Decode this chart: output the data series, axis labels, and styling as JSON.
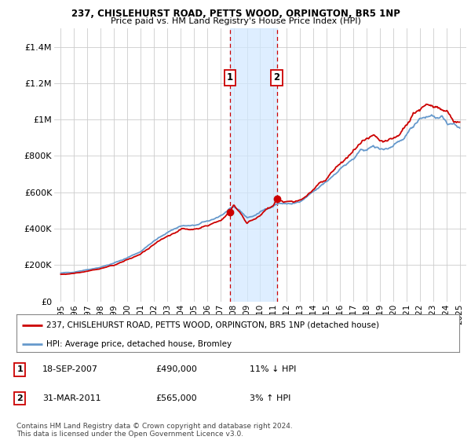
{
  "title1": "237, CHISLEHURST ROAD, PETTS WOOD, ORPINGTON, BR5 1NP",
  "title2": "Price paid vs. HM Land Registry's House Price Index (HPI)",
  "legend_red": "237, CHISLEHURST ROAD, PETTS WOOD, ORPINGTON, BR5 1NP (detached house)",
  "legend_blue": "HPI: Average price, detached house, Bromley",
  "copyright": "Contains HM Land Registry data © Crown copyright and database right 2024.\nThis data is licensed under the Open Government Licence v3.0.",
  "transactions": [
    {
      "num": "1",
      "date": "18-SEP-2007",
      "price": "£490,000",
      "hpi": "11% ↓ HPI"
    },
    {
      "num": "2",
      "date": "31-MAR-2011",
      "price": "£565,000",
      "hpi": "3% ↑ HPI"
    }
  ],
  "sale1_x": 2007.72,
  "sale1_y": 490000,
  "sale2_x": 2011.25,
  "sale2_y": 565000,
  "xlim": [
    1994.5,
    2025.5
  ],
  "ylim": [
    0,
    1500000
  ],
  "yticks": [
    0,
    200000,
    400000,
    600000,
    800000,
    1000000,
    1200000,
    1400000
  ],
  "ytick_labels": [
    "£0",
    "£200K",
    "£400K",
    "£600K",
    "£800K",
    "£1M",
    "£1.2M",
    "£1.4M"
  ],
  "xticks": [
    1995,
    1996,
    1997,
    1998,
    1999,
    2000,
    2001,
    2002,
    2003,
    2004,
    2005,
    2006,
    2007,
    2008,
    2009,
    2010,
    2011,
    2012,
    2013,
    2014,
    2015,
    2016,
    2017,
    2018,
    2019,
    2020,
    2021,
    2022,
    2023,
    2024,
    2025
  ],
  "red_color": "#cc0000",
  "blue_color": "#6699cc",
  "shade_color": "#d0e8ff",
  "bg_color": "#ffffff",
  "grid_color": "#cccccc"
}
